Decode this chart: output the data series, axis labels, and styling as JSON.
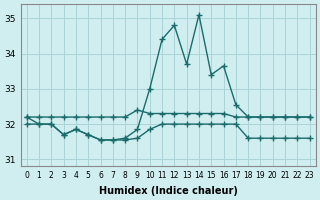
{
  "xlabel": "Humidex (Indice chaleur)",
  "x": [
    0,
    1,
    2,
    3,
    4,
    5,
    6,
    7,
    8,
    9,
    10,
    11,
    12,
    13,
    14,
    15,
    16,
    17,
    18,
    19,
    20,
    21,
    22,
    23
  ],
  "line1": [
    32.2,
    32.2,
    32.2,
    32.2,
    32.2,
    32.2,
    32.2,
    32.2,
    32.2,
    32.4,
    32.3,
    32.3,
    32.3,
    32.3,
    32.3,
    32.3,
    32.3,
    32.2,
    32.2,
    32.2,
    32.2,
    32.2,
    32.2,
    32.2
  ],
  "line2": [
    32.0,
    32.0,
    32.0,
    31.7,
    31.85,
    31.7,
    31.55,
    31.55,
    31.55,
    31.6,
    31.85,
    32.0,
    32.0,
    32.0,
    32.0,
    32.0,
    32.0,
    32.0,
    31.6,
    31.6,
    31.6,
    31.6,
    31.6,
    31.6
  ],
  "line3": [
    32.2,
    32.0,
    32.0,
    31.7,
    31.85,
    31.7,
    31.55,
    31.55,
    31.6,
    31.85,
    33.0,
    34.4,
    34.8,
    33.7,
    35.1,
    33.4,
    33.65,
    32.55,
    32.2,
    32.2,
    32.2,
    32.2,
    32.2,
    32.2
  ],
  "ylim": [
    30.8,
    35.4
  ],
  "yticks": [
    31,
    32,
    33,
    34,
    35
  ],
  "bg_color": "#d0eef0",
  "line_color": "#1a6b6b",
  "grid_color": "#aad4d8"
}
